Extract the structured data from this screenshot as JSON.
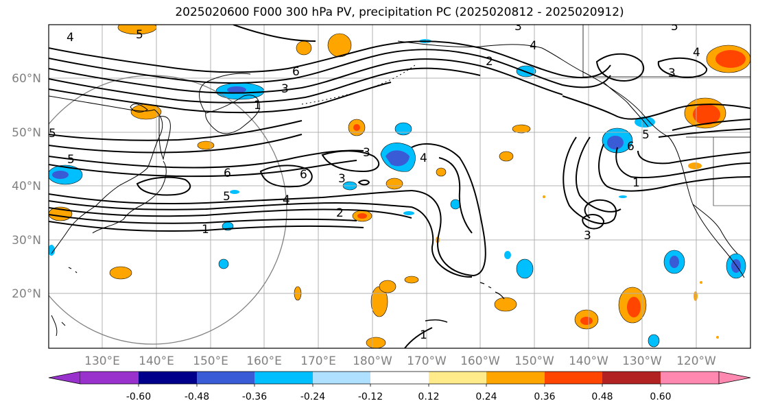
{
  "title": "2025020600 F000 300 hPa PV, precipitation PC (2025020812 - 2025020912)",
  "map": {
    "lat_ticks": [
      "60°N",
      "50°N",
      "40°N",
      "30°N",
      "20°N"
    ],
    "lon_ticks": [
      "130°E",
      "140°E",
      "150°E",
      "160°E",
      "170°E",
      "180°W",
      "170°W",
      "160°W",
      "150°W",
      "140°W",
      "130°W",
      "120°W"
    ],
    "contour_labels": [
      "1",
      "2",
      "3",
      "4",
      "5",
      "6"
    ]
  },
  "colorbar": {
    "colors": [
      "#9932CC",
      "#00008B",
      "#3A5BD6",
      "#00BFFF",
      "#B0E0FF",
      "#FFFFFF",
      "#FFEB8A",
      "#FFA500",
      "#FF4500",
      "#B22222",
      "#FF88B0"
    ],
    "tick_labels": [
      "-0.60",
      "-0.48",
      "-0.36",
      "-0.24",
      "-0.12",
      "0.12",
      "0.24",
      "0.36",
      "0.48",
      "0.60"
    ]
  }
}
